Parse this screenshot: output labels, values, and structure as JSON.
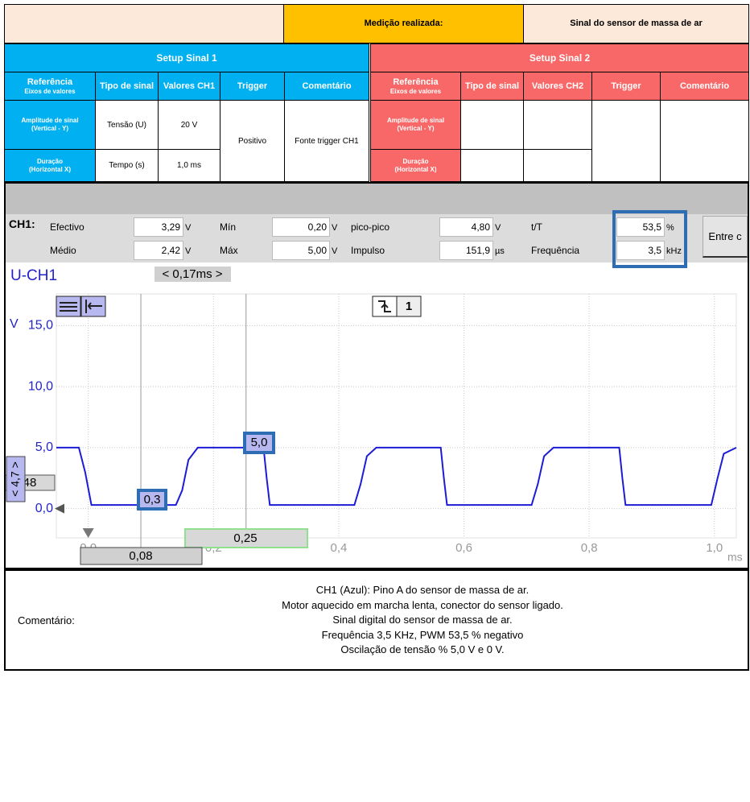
{
  "header": {
    "label": "Medição realizada:",
    "value": "Sinal do sensor de massa de ar"
  },
  "setup1": {
    "title": "Setup Sinal 1",
    "headers": {
      "ref": "Referência",
      "ref_sub": "Eixos de valores",
      "cols": [
        "Tipo de sinal",
        "Valores CH1",
        "Trigger",
        "Comentário"
      ]
    },
    "rows": [
      {
        "ref": "Amplitude de sinal",
        "ref_sub": "(Vertical - Y)",
        "type": "Tensão (U)",
        "value": "20 V"
      },
      {
        "ref": "Duração",
        "ref_sub": "(Horizontal X)",
        "type": "Tempo (s)",
        "value": "1,0 ms"
      }
    ],
    "trigger": "Positivo",
    "comment": "Fonte trigger CH1"
  },
  "setup2": {
    "title": "Setup Sinal 2",
    "headers": {
      "ref": "Referência",
      "ref_sub": "Eixos de valores",
      "cols": [
        "Tipo de sinal",
        "Valores CH2",
        "Trigger",
        "Comentário"
      ]
    },
    "rows": [
      {
        "ref": "Amplitude de sinal",
        "ref_sub": "(Vertical - Y)"
      },
      {
        "ref": "Duração",
        "ref_sub": "(Horizontal X)"
      }
    ]
  },
  "measurements": {
    "channel": "CH1:",
    "button": "Entre c",
    "items": [
      {
        "label": "Efectivo",
        "value": "3,29",
        "unit": "V"
      },
      {
        "label": "Mín",
        "value": "0,20",
        "unit": "V"
      },
      {
        "label": "pico-pico",
        "value": "4,80",
        "unit": "V"
      },
      {
        "label": "t/T",
        "value": "53,5",
        "unit": "%"
      },
      {
        "label": "Médio",
        "value": "2,42",
        "unit": "V"
      },
      {
        "label": "Máx",
        "value": "5,00",
        "unit": "V"
      },
      {
        "label": "Impulso",
        "value": "151,9",
        "unit": "µs"
      },
      {
        "label": "Frequência",
        "value": "3,5",
        "unit": "kHz"
      }
    ]
  },
  "chart_data": {
    "type": "line",
    "title": "U-CH1",
    "y_label": "V",
    "x_label": "ms",
    "x": [
      -0.051,
      -0.015,
      -0.005,
      0.005,
      0.14,
      0.15,
      0.16,
      0.175,
      0.28,
      0.285,
      0.29,
      0.425,
      0.435,
      0.445,
      0.46,
      0.563,
      0.568,
      0.573,
      0.708,
      0.718,
      0.728,
      0.743,
      0.848,
      0.853,
      0.858,
      0.995,
      1.005,
      1.015,
      1.035
    ],
    "series": [
      {
        "color": "#1c1cd6",
        "values": [
          5.0,
          5.0,
          3.0,
          0.3,
          0.3,
          1.5,
          4.0,
          5.0,
          5.0,
          2.5,
          0.3,
          0.3,
          2.0,
          4.3,
          5.0,
          5.0,
          2.5,
          0.3,
          0.3,
          2.0,
          4.3,
          5.0,
          5.0,
          2.5,
          0.3,
          0.3,
          2.5,
          4.5,
          5.0
        ]
      }
    ],
    "xlim": [
      -0.051,
      1.035
    ],
    "ylim": [
      -2.4,
      17.6
    ],
    "xticks": [
      {
        "value": 0,
        "label": "0,0"
      },
      {
        "value": 0.2,
        "label": "0,2"
      },
      {
        "value": 0.4,
        "label": "0,4"
      },
      {
        "value": 0.6,
        "label": "0,6"
      },
      {
        "value": 0.8,
        "label": "0,8"
      },
      {
        "value": 1.0,
        "label": "1,0"
      }
    ],
    "yticks": [
      {
        "value": 0,
        "label": "0,0"
      },
      {
        "value": 5,
        "label": "5,0"
      },
      {
        "value": 10,
        "label": "10,0"
      },
      {
        "value": 15,
        "label": "15,0"
      }
    ],
    "grid": true,
    "cursors": [
      {
        "value": 0.084,
        "label": "0,08"
      },
      {
        "value": 0.252,
        "label": "0,25"
      }
    ],
    "annotations": [
      "< 0,17ms >",
      "0,3",
      "5,0",
      "< 4,7 >",
      "48",
      "1"
    ]
  },
  "comment": {
    "label": "Comentário:",
    "lines": [
      "CH1 (Azul): Pino A do sensor de massa de ar.",
      "Motor aquecido em marcha lenta, conector do sensor ligado.",
      "Sinal digital do sensor de massa de ar.",
      "Frequência 3,5 KHz, PWM 53,5 % negativo",
      "Oscilação de tensão % 5,0 V e 0 V."
    ]
  }
}
